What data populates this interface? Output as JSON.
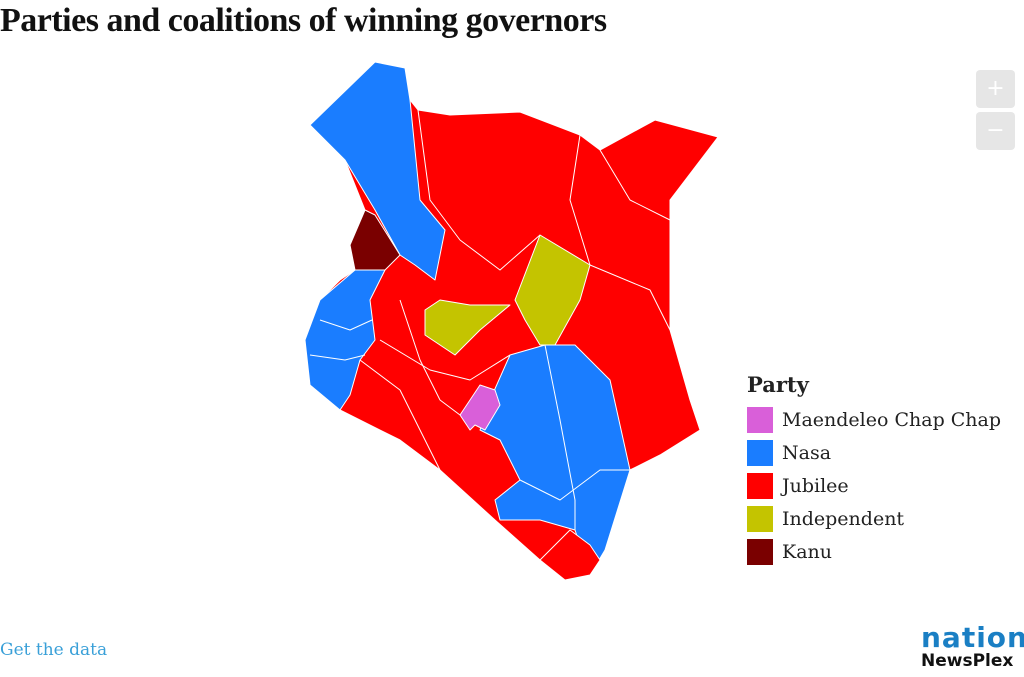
{
  "title": "Parties and coalitions of winning governors",
  "zoom_controls": {
    "zoom_in": "+",
    "zoom_out": "−"
  },
  "legend": {
    "title": "Party",
    "items": [
      {
        "label": "Maendeleo Chap Chap",
        "color": "#d95fd9"
      },
      {
        "label": "Nasa",
        "color": "#1a7dff"
      },
      {
        "label": "Jubilee",
        "color": "#ff0000"
      },
      {
        "label": "Independent",
        "color": "#c4c400"
      },
      {
        "label": "Kanu",
        "color": "#7a0000"
      }
    ]
  },
  "footer": {
    "get_data": "Get the data",
    "logo_top": "nation",
    "logo_bottom": "NewsPlex"
  }
}
